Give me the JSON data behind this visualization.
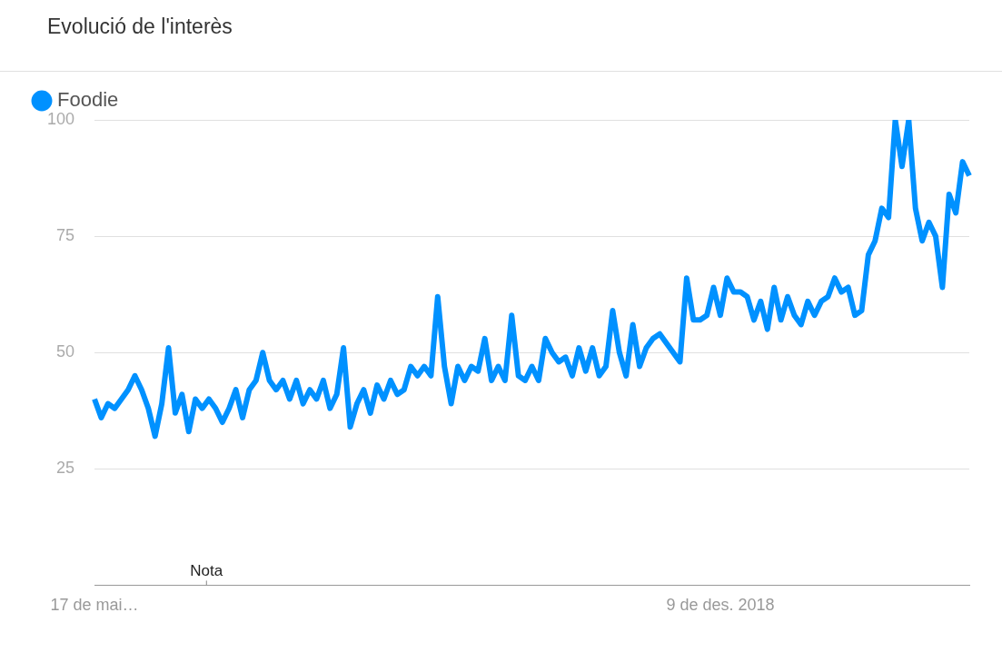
{
  "chart_data": {
    "type": "line",
    "title": "Evolució de l'interès",
    "categories": [
      "17 de mai…",
      null,
      null,
      null,
      null,
      null,
      null,
      null,
      null,
      null,
      null,
      null,
      null,
      null,
      null,
      null,
      null,
      null,
      null,
      null,
      null,
      null,
      null,
      null,
      null,
      null,
      null,
      null,
      null,
      null,
      null,
      null,
      null,
      null,
      null,
      null,
      null,
      null,
      null,
      null,
      null,
      null,
      null,
      null,
      null,
      null,
      null,
      null,
      null,
      null,
      null,
      null,
      null,
      null,
      null,
      null,
      null,
      null,
      null,
      null,
      null,
      null,
      null,
      null,
      null,
      null,
      null,
      null,
      null,
      null,
      null,
      null,
      null,
      null,
      null,
      null,
      null,
      null,
      null,
      null,
      null,
      null,
      null,
      null,
      null,
      null,
      null,
      null,
      null,
      null,
      null,
      null,
      null,
      "9 de des. 2018",
      null,
      null,
      null,
      null,
      null,
      null,
      null,
      null,
      null,
      null,
      null,
      null,
      null,
      null,
      null,
      null,
      null,
      null,
      null,
      null,
      null,
      null,
      null,
      null,
      null,
      null,
      null,
      null,
      null,
      null,
      null,
      null,
      null,
      null,
      null,
      null,
      null
    ],
    "series": [
      {
        "name": "Foodie",
        "color": "#0091ff",
        "values": [
          40,
          36,
          39,
          38,
          40,
          42,
          45,
          42,
          38,
          32,
          39,
          51,
          37,
          41,
          33,
          40,
          38,
          40,
          38,
          35,
          38,
          42,
          36,
          42,
          44,
          50,
          44,
          42,
          44,
          40,
          44,
          39,
          42,
          40,
          44,
          38,
          41,
          51,
          34,
          39,
          42,
          37,
          43,
          40,
          44,
          41,
          42,
          47,
          45,
          47,
          45,
          62,
          47,
          39,
          47,
          44,
          47,
          46,
          53,
          44,
          47,
          44,
          58,
          45,
          44,
          47,
          44,
          53,
          50,
          48,
          49,
          45,
          51,
          46,
          51,
          45,
          47,
          59,
          50,
          45,
          56,
          47,
          51,
          53,
          54,
          52,
          50,
          48,
          66,
          57,
          57,
          58,
          64,
          58,
          66,
          63,
          63,
          62,
          57,
          61,
          55,
          64,
          57,
          62,
          58,
          56,
          61,
          58,
          61,
          62,
          66,
          63,
          64,
          58,
          59,
          71,
          74,
          81,
          79,
          100,
          90,
          100,
          81,
          74,
          78,
          75,
          64,
          84,
          80,
          91,
          88
        ]
      }
    ],
    "ylim": [
      0,
      100
    ],
    "yticks": [
      25,
      50,
      75,
      100
    ],
    "grid": "y",
    "legend": "top left",
    "marker": "none",
    "annotations": [
      "Nota"
    ]
  }
}
